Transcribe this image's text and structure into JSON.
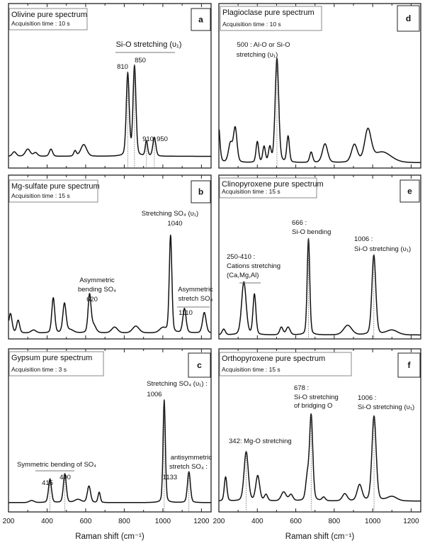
{
  "chart_data": [
    {
      "type": "line",
      "panel": "a",
      "title": "Olivine pure spectrum",
      "acquisition": "Acquisition time : 10 s",
      "xlabel": "",
      "xlim": [
        200,
        1250
      ],
      "ylim": [
        -0.13,
        1.7
      ],
      "xticks": [
        200,
        400,
        600,
        800,
        1000,
        1200
      ],
      "show_tick_labels": false,
      "peaks": [
        {
          "x": 230,
          "h": 0.05,
          "w": 12
        },
        {
          "x": 300,
          "h": 0.08,
          "w": 15
        },
        {
          "x": 340,
          "h": 0.04,
          "w": 12
        },
        {
          "x": 420,
          "h": 0.08,
          "w": 10
        },
        {
          "x": 545,
          "h": 0.06,
          "w": 8
        },
        {
          "x": 590,
          "h": 0.13,
          "w": 18
        },
        {
          "x": 818,
          "h": 0.92,
          "w": 9
        },
        {
          "x": 853,
          "h": 1.0,
          "w": 9
        },
        {
          "x": 915,
          "h": 0.17,
          "w": 7
        },
        {
          "x": 956,
          "h": 0.21,
          "w": 9
        }
      ],
      "markers": [
        818,
        853,
        915,
        956
      ],
      "annotations": [
        "Si-O stretching (υ₁)",
        "810",
        "850",
        "910",
        "950"
      ]
    },
    {
      "type": "line",
      "panel": "b",
      "title": "Mg-sulfate pure spectrum",
      "acquisition": "Acquisition time : 15 s",
      "xlabel": "",
      "xlim": [
        200,
        1250
      ],
      "ylim": [
        -0.06,
        1.62
      ],
      "xticks": [
        200,
        400,
        600,
        800,
        1000,
        1200
      ],
      "show_tick_labels": false,
      "peaks": [
        {
          "x": 210,
          "h": 0.2,
          "w": 10
        },
        {
          "x": 250,
          "h": 0.13,
          "w": 9
        },
        {
          "x": 330,
          "h": 0.03,
          "w": 15
        },
        {
          "x": 432,
          "h": 0.36,
          "w": 9
        },
        {
          "x": 490,
          "h": 0.3,
          "w": 10
        },
        {
          "x": 520,
          "h": 0.03,
          "w": 20
        },
        {
          "x": 620,
          "h": 0.38,
          "w": 9
        },
        {
          "x": 640,
          "h": 0.08,
          "w": 15
        },
        {
          "x": 750,
          "h": 0.06,
          "w": 18
        },
        {
          "x": 860,
          "h": 0.07,
          "w": 20
        },
        {
          "x": 1000,
          "h": 0.05,
          "w": 20
        },
        {
          "x": 1040,
          "h": 1.0,
          "w": 8
        },
        {
          "x": 1112,
          "h": 0.25,
          "w": 10
        },
        {
          "x": 1215,
          "h": 0.21,
          "w": 11
        }
      ],
      "markers": [],
      "annotations": [
        "Stretching SO₄ (υ₁)",
        "1040",
        "Asymmetric",
        "bending SO₄",
        "620",
        "Asymmetric",
        "stretch SO₄",
        "1110"
      ]
    },
    {
      "type": "line",
      "panel": "c",
      "title": "Gypsum pure spectrum",
      "acquisition": "Acquisition time : 3 s",
      "xlabel": "Raman shift (cm⁻¹)",
      "xlim": [
        200,
        1250
      ],
      "ylim": [
        -0.09,
        1.49
      ],
      "xticks": [
        200,
        400,
        600,
        800,
        1000,
        1200
      ],
      "show_tick_labels": true,
      "peaks": [
        {
          "x": 320,
          "h": 0.02,
          "w": 15
        },
        {
          "x": 415,
          "h": 0.23,
          "w": 9
        },
        {
          "x": 492,
          "h": 0.28,
          "w": 9
        },
        {
          "x": 560,
          "h": 0.03,
          "w": 20
        },
        {
          "x": 617,
          "h": 0.16,
          "w": 10
        },
        {
          "x": 670,
          "h": 0.1,
          "w": 7
        },
        {
          "x": 1007,
          "h": 1.0,
          "w": 7
        },
        {
          "x": 1135,
          "h": 0.3,
          "w": 9
        }
      ],
      "markers": [
        415,
        492,
        1007,
        1135
      ],
      "annotations": [
        "Stretching SO₄ (υ₁) :",
        "1006",
        "Symmetric bending of SO₄",
        "415",
        "490",
        "antisymmetric",
        "stretch SO₄ :",
        "1133"
      ]
    },
    {
      "type": "line",
      "panel": "d",
      "title": "Plagioclase pure spectrum",
      "acquisition": "Acquisition time : 10 s",
      "xlabel": "",
      "xlim": [
        200,
        1250
      ],
      "ylim": [
        -0.05,
        1.53
      ],
      "xticks": [
        200,
        400,
        600,
        800,
        1000,
        1200
      ],
      "show_tick_labels": false,
      "peaks": [
        {
          "x": 195,
          "h": 0.45,
          "w": 10
        },
        {
          "x": 260,
          "h": 0.18,
          "w": 12
        },
        {
          "x": 285,
          "h": 0.33,
          "w": 11
        },
        {
          "x": 400,
          "h": 0.2,
          "w": 8
        },
        {
          "x": 435,
          "h": 0.15,
          "w": 8
        },
        {
          "x": 465,
          "h": 0.14,
          "w": 8
        },
        {
          "x": 502,
          "h": 1.0,
          "w": 11
        },
        {
          "x": 560,
          "h": 0.25,
          "w": 8
        },
        {
          "x": 680,
          "h": 0.1,
          "w": 9
        },
        {
          "x": 752,
          "h": 0.18,
          "w": 16
        },
        {
          "x": 905,
          "h": 0.17,
          "w": 18
        },
        {
          "x": 975,
          "h": 0.3,
          "w": 20
        },
        {
          "x": 1050,
          "h": 0.1,
          "w": 55
        }
      ],
      "markers": [
        502
      ],
      "annotations": [
        "500 : Al-O or Si-O",
        "stretching (υ₁)"
      ]
    },
    {
      "type": "line",
      "panel": "e",
      "title": "Clinopyroxene pure spectrum",
      "acquisition": "Acquisition time : 15 s",
      "xlabel": "",
      "xlim": [
        200,
        1250
      ],
      "ylim": [
        -0.04,
        1.66
      ],
      "xticks": [
        200,
        400,
        600,
        800,
        1000,
        1200
      ],
      "show_tick_labels": false,
      "peaks": [
        {
          "x": 225,
          "h": 0.06,
          "w": 10
        },
        {
          "x": 330,
          "h": 0.55,
          "w": 14
        },
        {
          "x": 385,
          "h": 0.42,
          "w": 9
        },
        {
          "x": 525,
          "h": 0.08,
          "w": 10
        },
        {
          "x": 560,
          "h": 0.08,
          "w": 12
        },
        {
          "x": 666,
          "h": 1.0,
          "w": 8
        },
        {
          "x": 870,
          "h": 0.1,
          "w": 25
        },
        {
          "x": 1006,
          "h": 0.83,
          "w": 12
        },
        {
          "x": 1100,
          "h": 0.05,
          "w": 35
        }
      ],
      "markers": [
        666,
        1006
      ],
      "annotations": [
        "666 :",
        "Si-O bending",
        "1006 :",
        "Si-O stretching (υ₁)",
        "250-410 :",
        "Cations stretching",
        "(Ca,Mg,Al)"
      ]
    },
    {
      "type": "line",
      "panel": "f",
      "title": "Orthopyroxene pure spectrum",
      "acquisition": "Acquisition time : 15 s",
      "xlabel": "Raman shift (cm⁻¹)",
      "xlim": [
        200,
        1250
      ],
      "ylim": [
        -0.12,
        1.7
      ],
      "xticks": [
        200,
        400,
        600,
        800,
        1000,
        1200
      ],
      "show_tick_labels": true,
      "peaks": [
        {
          "x": 235,
          "h": 0.27,
          "w": 8
        },
        {
          "x": 342,
          "h": 0.55,
          "w": 13
        },
        {
          "x": 402,
          "h": 0.28,
          "w": 12
        },
        {
          "x": 445,
          "h": 0.07,
          "w": 10
        },
        {
          "x": 537,
          "h": 0.1,
          "w": 15
        },
        {
          "x": 575,
          "h": 0.07,
          "w": 12
        },
        {
          "x": 660,
          "h": 0.25,
          "w": 10
        },
        {
          "x": 680,
          "h": 0.95,
          "w": 10
        },
        {
          "x": 745,
          "h": 0.04,
          "w": 10
        },
        {
          "x": 855,
          "h": 0.08,
          "w": 15
        },
        {
          "x": 932,
          "h": 0.18,
          "w": 15
        },
        {
          "x": 1007,
          "h": 0.95,
          "w": 13
        },
        {
          "x": 1100,
          "h": 0.05,
          "w": 30
        }
      ],
      "markers": [
        342,
        680,
        1007
      ],
      "annotations": [
        "342: Mg-O stretching",
        "678 :",
        "Si-O stretching",
        "of bridging O",
        "1006 :",
        "Si-O stretching (υ₁)"
      ]
    }
  ]
}
